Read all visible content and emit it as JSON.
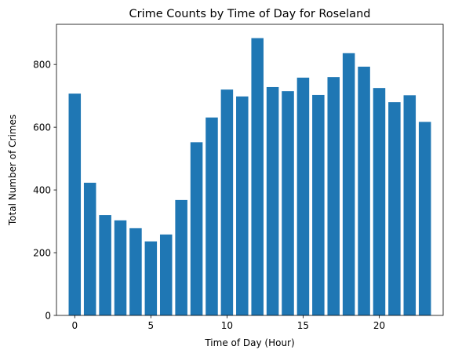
{
  "chart_data": {
    "type": "bar",
    "title": "Crime Counts by Time of Day for Roseland",
    "xlabel": "Time of Day (Hour)",
    "ylabel": "Total Number of Crimes",
    "x": [
      0,
      1,
      2,
      3,
      4,
      5,
      6,
      7,
      8,
      9,
      10,
      11,
      12,
      13,
      14,
      15,
      16,
      17,
      18,
      19,
      20,
      21,
      22,
      23
    ],
    "values": [
      707,
      423,
      320,
      303,
      278,
      236,
      258,
      368,
      552,
      631,
      720,
      698,
      884,
      728,
      715,
      758,
      703,
      760,
      836,
      793,
      725,
      680,
      702,
      617
    ],
    "xlim": [
      -1.2,
      24.2
    ],
    "ylim": [
      0,
      928
    ],
    "xticks": [
      0,
      5,
      10,
      15,
      20
    ],
    "yticks": [
      0,
      200,
      400,
      600,
      800
    ],
    "bar_width": 0.8,
    "bar_color": "#1f77b4",
    "grid": false,
    "legend": "none"
  }
}
